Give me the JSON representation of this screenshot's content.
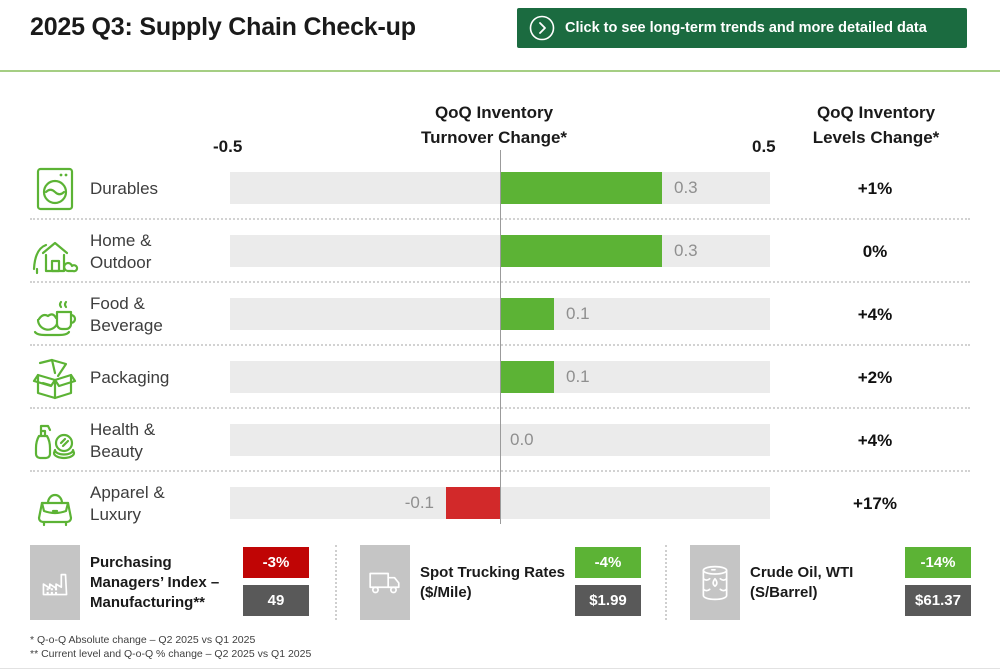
{
  "header": {
    "title": "2025 Q3: Supply Chain Check-up",
    "button_label": "Click to see long-term trends and more detailed data"
  },
  "chart": {
    "turnover_header_line1": "QoQ Inventory",
    "turnover_header_line2": "Turnover Change*",
    "levels_header_line1": "QoQ Inventory",
    "levels_header_line2": "Levels Change*",
    "axis_min_label": "-0.5",
    "axis_max_label": "0.5",
    "rows": [
      {
        "label_line1": "Durables",
        "label_line2": "",
        "value_label": "0.3",
        "levels_label": "+1%"
      },
      {
        "label_line1": "Home &",
        "label_line2": "Outdoor",
        "value_label": "0.3",
        "levels_label": "0%"
      },
      {
        "label_line1": "Food &",
        "label_line2": "Beverage",
        "value_label": "0.1",
        "levels_label": "+4%"
      },
      {
        "label_line1": "Packaging",
        "label_line2": "",
        "value_label": "0.1",
        "levels_label": "+2%"
      },
      {
        "label_line1": "Health &",
        "label_line2": "Beauty",
        "value_label": "0.0",
        "levels_label": "+4%"
      },
      {
        "label_line1": "Apparel &",
        "label_line2": "Luxury",
        "value_label": "-0.1",
        "levels_label": "+17%"
      }
    ]
  },
  "chart_data": {
    "type": "bar",
    "orientation": "horizontal",
    "title": "2025 Q3: Supply Chain Check-up",
    "categories": [
      "Durables",
      "Home & Outdoor",
      "Food & Beverage",
      "Packaging",
      "Health & Beauty",
      "Apparel & Luxury"
    ],
    "series": [
      {
        "name": "QoQ Inventory Turnover Change",
        "values": [
          0.3,
          0.3,
          0.1,
          0.1,
          0.0,
          -0.1
        ]
      },
      {
        "name": "QoQ Inventory Levels Change",
        "values": [
          "+1%",
          "0%",
          "+4%",
          "+2%",
          "+4%",
          "+17%"
        ]
      }
    ],
    "xlim": [
      -0.5,
      0.5
    ],
    "grid": false,
    "legend": false
  },
  "colors": {
    "positive": "#5CB335",
    "negative": "#D2292A",
    "badge_red": "#C00505",
    "badge_green": "#5CB335",
    "badge_dark": "#595959",
    "button_green": "#1B6B40"
  },
  "kpis": [
    {
      "label": "Purchasing Managers’ Index – Manufacturing**",
      "change_label": "-3%",
      "change_bg": "#C00505",
      "value_label": "49"
    },
    {
      "label": "Spot Trucking Rates ($/Mile)",
      "change_label": "-4%",
      "change_bg": "#5CB335",
      "value_label": "$1.99"
    },
    {
      "label": "Crude Oil, WTI (S/Barrel)",
      "change_label": "-14%",
      "change_bg": "#5CB335",
      "value_label": "$61.37"
    }
  ],
  "footnotes": [
    "* Q-o-Q Absolute change – Q2 2025 vs Q1 2025",
    "** Current level and Q-o-Q % change – Q2 2025 vs Q1 2025"
  ]
}
